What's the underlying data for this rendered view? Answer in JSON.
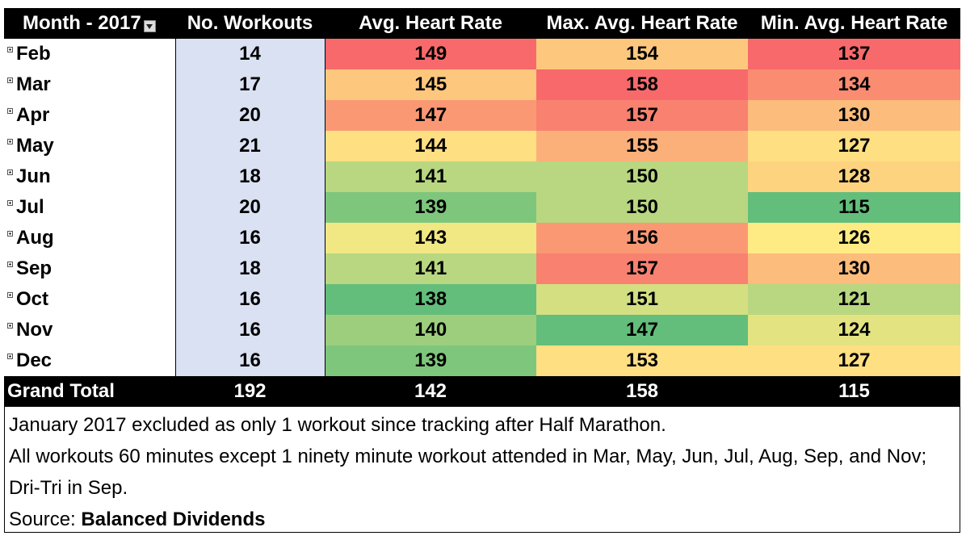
{
  "table": {
    "headers": [
      "Month - 2017",
      "No. Workouts",
      "Avg. Heart Rate",
      "Max. Avg. Heart Rate",
      "Min. Avg. Heart Rate"
    ],
    "rows": [
      {
        "month": "Feb",
        "workouts": "14",
        "avg": "149",
        "max": "154",
        "min": "137"
      },
      {
        "month": "Mar",
        "workouts": "17",
        "avg": "145",
        "max": "158",
        "min": "134"
      },
      {
        "month": "Apr",
        "workouts": "20",
        "avg": "147",
        "max": "157",
        "min": "130"
      },
      {
        "month": "May",
        "workouts": "21",
        "avg": "144",
        "max": "155",
        "min": "127"
      },
      {
        "month": "Jun",
        "workouts": "18",
        "avg": "141",
        "max": "150",
        "min": "128"
      },
      {
        "month": "Jul",
        "workouts": "20",
        "avg": "139",
        "max": "150",
        "min": "115"
      },
      {
        "month": "Aug",
        "workouts": "16",
        "avg": "143",
        "max": "156",
        "min": "126"
      },
      {
        "month": "Sep",
        "workouts": "18",
        "avg": "141",
        "max": "157",
        "min": "130"
      },
      {
        "month": "Oct",
        "workouts": "16",
        "avg": "138",
        "max": "151",
        "min": "121"
      },
      {
        "month": "Nov",
        "workouts": "16",
        "avg": "140",
        "max": "147",
        "min": "124"
      },
      {
        "month": "Dec",
        "workouts": "16",
        "avg": "139",
        "max": "153",
        "min": "127"
      }
    ],
    "total": {
      "label": "Grand Total",
      "workouts": "192",
      "avg": "142",
      "max": "158",
      "min": "115"
    }
  },
  "notes": {
    "line1": "January 2017 excluded as only 1 workout since tracking after Half Marathon.",
    "line2": "All workouts 60 minutes except 1 ninety minute workout attended in Mar, May, Jun, Jul, Aug, Sep, and Nov; Dri-Tri in Sep.",
    "source_prefix": "Source: ",
    "source_name": "Balanced Dividends"
  },
  "colors": {
    "header_bg": "#000000",
    "workouts_bg": "#d9e1f2",
    "scale_low": "#63be7b",
    "scale_mid": "#ffeb84",
    "scale_high": "#f8696b"
  },
  "icons": {
    "filter": "filter-dropdown-icon",
    "expand": "expand-plus-icon"
  },
  "chart_data": {
    "type": "table",
    "columns": [
      "Month - 2017",
      "No. Workouts",
      "Avg. Heart Rate",
      "Max. Avg. Heart Rate",
      "Min. Avg. Heart Rate"
    ],
    "categories": [
      "Feb",
      "Mar",
      "Apr",
      "May",
      "Jun",
      "Jul",
      "Aug",
      "Sep",
      "Oct",
      "Nov",
      "Dec"
    ],
    "series": [
      {
        "name": "No. Workouts",
        "values": [
          14,
          17,
          20,
          21,
          18,
          20,
          16,
          18,
          16,
          16,
          16
        ]
      },
      {
        "name": "Avg. Heart Rate",
        "values": [
          149,
          145,
          147,
          144,
          141,
          139,
          143,
          141,
          138,
          140,
          139
        ]
      },
      {
        "name": "Max. Avg. Heart Rate",
        "values": [
          154,
          158,
          157,
          155,
          150,
          150,
          156,
          157,
          151,
          147,
          153
        ]
      },
      {
        "name": "Min. Avg. Heart Rate",
        "values": [
          137,
          134,
          130,
          127,
          128,
          115,
          126,
          130,
          121,
          124,
          127
        ]
      }
    ],
    "grand_total": {
      "No. Workouts": 192,
      "Avg. Heart Rate": 142,
      "Max. Avg. Heart Rate": 158,
      "Min. Avg. Heart Rate": 115
    }
  }
}
